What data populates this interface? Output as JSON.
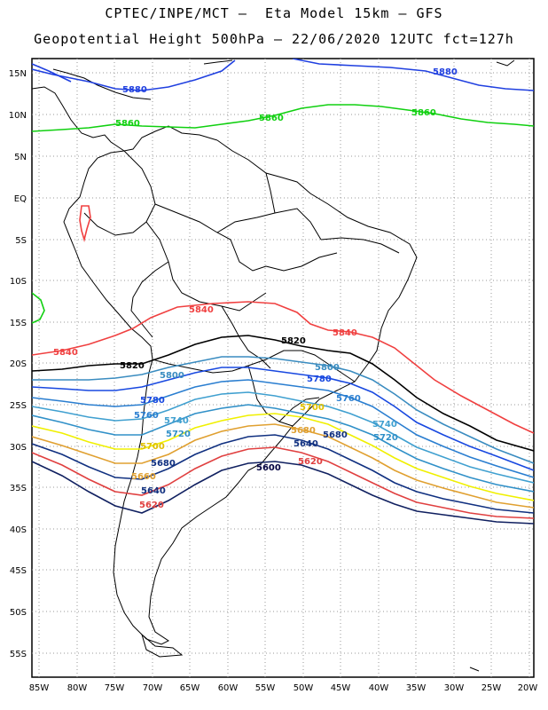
{
  "title_line1": "CPTEC/INPE/MCT –  Eta Model 15km – GFS",
  "title_line2": "Geopotential Height 500hPa – 22/06/2020 12UTC fct=127h",
  "lat_labels": [
    "15N",
    "10N",
    "5N",
    "EQ",
    "5S",
    "10S",
    "15S",
    "20S",
    "25S",
    "30S",
    "35S",
    "40S",
    "45S",
    "50S",
    "55S"
  ],
  "lon_labels": [
    "85W",
    "80W",
    "75W",
    "70W",
    "65W",
    "60W",
    "55W",
    "50W",
    "45W",
    "40W",
    "35W",
    "30W",
    "25W",
    "20W"
  ],
  "contour_labels": {
    "c5880": "5880",
    "c5860": "5860",
    "c5840": "5840",
    "c5820": "5820",
    "c5800": "5800",
    "c5780": "5780",
    "c5760": "5760",
    "c5740": "5740",
    "c5720": "5720",
    "c5700": "5700",
    "c5680": "5680",
    "c5660": "5660",
    "c5640": "5640",
    "c5620": "5620",
    "c5600": "5600"
  },
  "colors": {
    "c5880": "#2040e0",
    "c5860": "#10d010",
    "c5840": "#f04040",
    "c5820": "#000000",
    "c5800": "#3a8cc0",
    "c5780": "#1848e0",
    "c5760": "#2a7ed0",
    "c5740": "#40a0d0",
    "c5720": "#3090c8",
    "c5700": "#f0f000",
    "c5680": "#e0a030",
    "c5660": "#103080",
    "c5640": "#e04040",
    "c5620": "#102060",
    "c5600": "#000040"
  }
}
